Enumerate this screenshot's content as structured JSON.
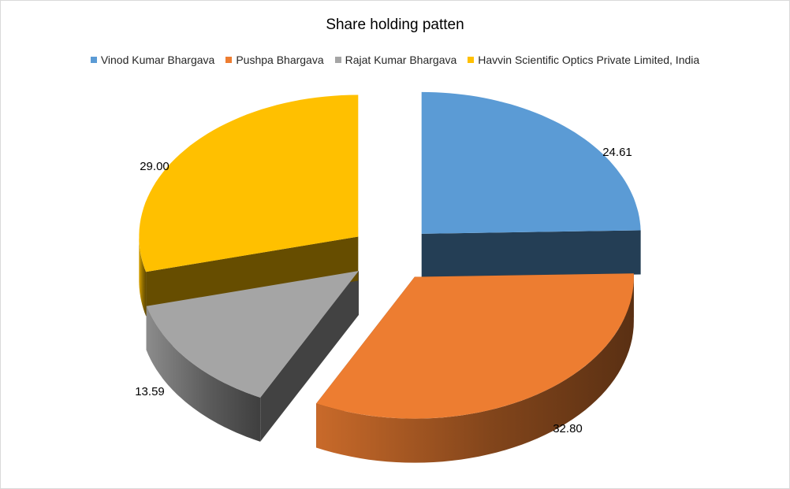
{
  "chart_data": {
    "type": "pie",
    "title": "Share holding patten",
    "legend_position": "top",
    "categories": [
      "Vinod Kumar Bhargava",
      "Pushpa Bhargava",
      "Rajat Kumar Bhargava",
      "Havvin Scientific Optics Private Limited, India"
    ],
    "values": [
      24.61,
      32.8,
      13.59,
      29.0
    ],
    "data_labels": [
      "24.61",
      "32.80",
      "13.59",
      "29.00"
    ],
    "colors": [
      "#5B9BD5",
      "#ED7D31",
      "#A5A5A5",
      "#FFC000"
    ],
    "exploded": true,
    "style": "3d"
  }
}
